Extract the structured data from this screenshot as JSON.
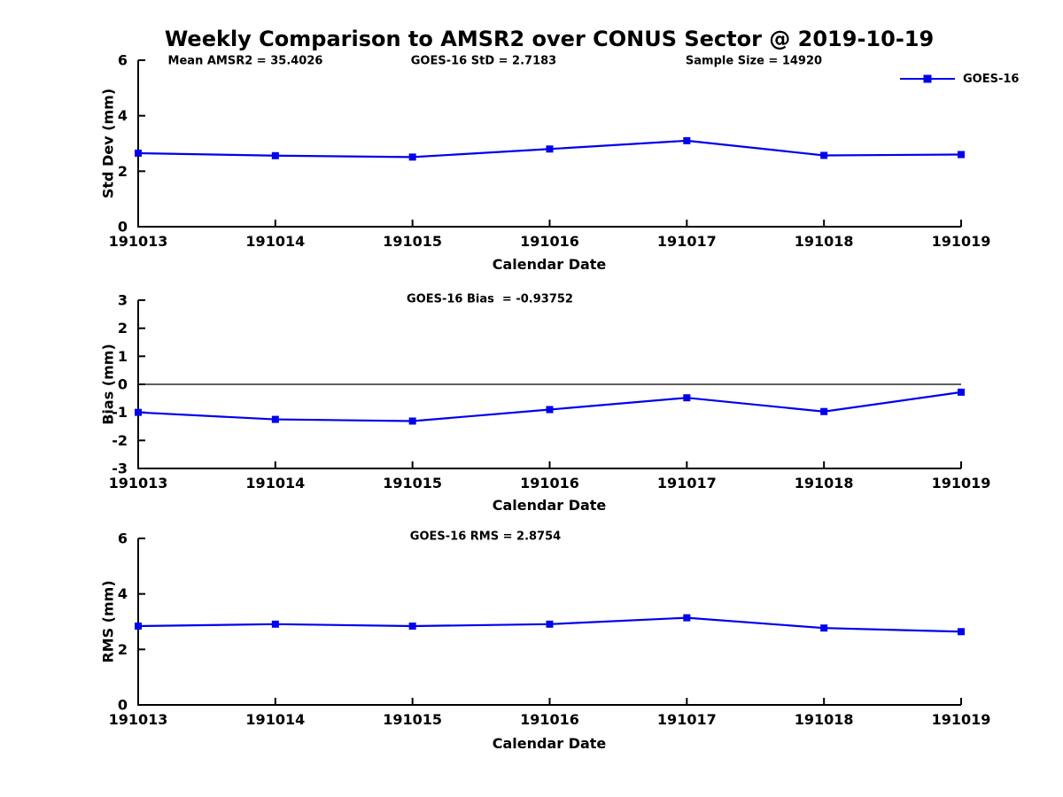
{
  "figure": {
    "title": "Weekly Comparison to AMSR2 over CONUS Sector @ 2019-10-19",
    "x_axis_label": "Calendar Date",
    "line_color": "#0000EE",
    "axis_color": "#000000",
    "legend": {
      "label": "GOES-16"
    }
  },
  "chart_data": [
    {
      "id": "stddev",
      "type": "line",
      "ylabel": "Std Dev (mm)",
      "xlabel": "Calendar Date",
      "categories": [
        "191013",
        "191014",
        "191015",
        "191016",
        "191017",
        "191018",
        "191019"
      ],
      "series": [
        {
          "name": "GOES-16",
          "values": [
            2.65,
            2.56,
            2.51,
            2.8,
            3.1,
            2.57,
            2.6
          ]
        }
      ],
      "ylim": [
        0,
        6
      ],
      "yticks": [
        0,
        2,
        4,
        6
      ],
      "annotations": [
        "Mean AMSR2 = 35.4026",
        "GOES-16 StD = 2.7183",
        "Sample Size = 14920"
      ],
      "legend_position": "top-right",
      "zero_line": false,
      "grid": false
    },
    {
      "id": "bias",
      "type": "line",
      "ylabel": "Bias (mm)",
      "xlabel": "Calendar Date",
      "categories": [
        "191013",
        "191014",
        "191015",
        "191016",
        "191017",
        "191018",
        "191019"
      ],
      "series": [
        {
          "name": "GOES-16",
          "values": [
            -1.0,
            -1.25,
            -1.31,
            -0.9,
            -0.48,
            -0.97,
            -0.28
          ]
        }
      ],
      "ylim": [
        -3,
        3
      ],
      "yticks": [
        -3,
        -2,
        -1,
        0,
        1,
        2,
        3
      ],
      "annotations": [
        "GOES-16 Bias  = -0.93752"
      ],
      "legend_position": "none",
      "zero_line": true,
      "grid": false
    },
    {
      "id": "rms",
      "type": "line",
      "ylabel": "RMS (mm)",
      "xlabel": "Calendar Date",
      "categories": [
        "191013",
        "191014",
        "191015",
        "191016",
        "191017",
        "191018",
        "191019"
      ],
      "series": [
        {
          "name": "GOES-16",
          "values": [
            2.84,
            2.91,
            2.84,
            2.91,
            3.14,
            2.77,
            2.64
          ]
        }
      ],
      "ylim": [
        0,
        6
      ],
      "yticks": [
        0,
        2,
        4,
        6
      ],
      "annotations": [
        "GOES-16 RMS = 2.8754"
      ],
      "legend_position": "none",
      "zero_line": false,
      "grid": false
    }
  ]
}
